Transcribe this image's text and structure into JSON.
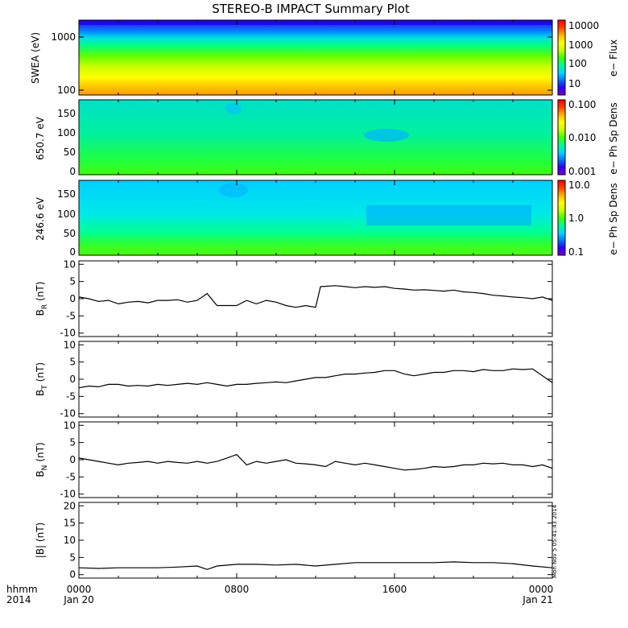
{
  "title": "STEREO-B IMPACT Summary Plot",
  "colors": {
    "line": "#000000",
    "spec_stops": [
      "#7a00c8",
      "#2a00ff",
      "#0078ff",
      "#00d8ff",
      "#00ff90",
      "#40ff00",
      "#c8ff00",
      "#ffff00",
      "#ffb400",
      "#ff4000",
      "#ff0000"
    ]
  },
  "x_axis": {
    "row1_label": "hhmm",
    "row2_label": "2014",
    "ticks": [
      "0000",
      "0800",
      "1600",
      "0000"
    ],
    "dates": [
      "Jan 20",
      "",
      "",
      "Jan 21"
    ],
    "range_hours": [
      0,
      24
    ]
  },
  "timestamp": "Mon Nov  5 05:41:43 2014",
  "chart_data": [
    {
      "type": "heatmap",
      "ylabel": "SWEA (eV)",
      "yticks": [
        "1000",
        "100"
      ],
      "ylim": [
        80,
        2500
      ],
      "log_y": true,
      "colorbar": {
        "label": "e− Flux",
        "ticks": [
          "10000",
          "1000",
          "100",
          "10"
        ],
        "range": [
          1,
          20000
        ],
        "log": true
      }
    },
    {
      "type": "heatmap",
      "ylabel": "650.7 eV",
      "yticks": [
        "0",
        "50",
        "100",
        "150"
      ],
      "ylim": [
        -5,
        180
      ],
      "colorbar": {
        "label": "e− Ph Sp Dens",
        "ticks": [
          "0.100",
          "0.010",
          "0.001"
        ],
        "range": [
          0.001,
          0.1
        ],
        "log": true
      }
    },
    {
      "type": "heatmap",
      "ylabel": "246.6 eV",
      "yticks": [
        "0",
        "50",
        "100",
        "150"
      ],
      "ylim": [
        -5,
        180
      ],
      "colorbar": {
        "label": "e− Ph Sp Dens",
        "ticks": [
          "10.0",
          "1.0",
          "0.1"
        ],
        "range": [
          0.1,
          10
        ],
        "log": true
      }
    },
    {
      "type": "line",
      "ylabel": "BR (nT)",
      "ylabel_main": "B",
      "ylabel_sub": "R",
      "ylabel_unit": "(nT)",
      "yticks": [
        "-10",
        "-5",
        "0",
        "5",
        "10"
      ],
      "ylim": [
        -11,
        11
      ],
      "x": [
        0,
        0.5,
        1,
        1.5,
        2,
        2.5,
        3,
        3.5,
        4,
        4.5,
        5,
        5.5,
        6,
        6.5,
        7,
        7.5,
        8,
        8.5,
        9,
        9.5,
        10,
        10.5,
        11,
        11.5,
        12,
        12.25,
        13,
        13.5,
        14,
        14.5,
        15,
        15.5,
        16,
        16.5,
        17,
        17.5,
        18,
        18.5,
        19,
        19.5,
        20,
        20.5,
        21,
        21.5,
        22,
        22.5,
        23,
        23.5,
        24
      ],
      "y": [
        0.5,
        0,
        -0.8,
        -0.5,
        -1.5,
        -1,
        -0.8,
        -1.2,
        -0.5,
        -0.5,
        -0.3,
        -1,
        -0.5,
        1.5,
        -2,
        -2,
        -2,
        -0.5,
        -1.5,
        -0.5,
        -1,
        -2,
        -2.5,
        -2,
        -2.5,
        3.5,
        3.8,
        3.5,
        3.2,
        3.5,
        3.3,
        3.5,
        3,
        2.8,
        2.5,
        2.6,
        2.4,
        2.2,
        2.5,
        2,
        1.8,
        1.5,
        1,
        0.8,
        0.5,
        0.3,
        0,
        0.5,
        -0.5
      ]
    },
    {
      "type": "line",
      "ylabel": "BT (nT)",
      "ylabel_main": "B",
      "ylabel_sub": "T",
      "ylabel_unit": "(nT)",
      "yticks": [
        "-10",
        "-5",
        "0",
        "5",
        "10"
      ],
      "ylim": [
        -11,
        11
      ],
      "x": [
        0,
        0.5,
        1,
        1.5,
        2,
        2.5,
        3,
        3.5,
        4,
        4.5,
        5,
        5.5,
        6,
        6.5,
        7,
        7.5,
        8,
        8.5,
        9,
        9.5,
        10,
        10.5,
        11,
        11.5,
        12,
        12.5,
        13,
        13.5,
        14,
        14.5,
        15,
        15.5,
        16,
        16.5,
        17,
        17.5,
        18,
        18.5,
        19,
        19.5,
        20,
        20.5,
        21,
        21.5,
        22,
        22.5,
        23,
        23.5,
        24
      ],
      "y": [
        -2.5,
        -2,
        -2.2,
        -1.5,
        -1.5,
        -2,
        -1.8,
        -2,
        -1.5,
        -1.8,
        -1.5,
        -1.2,
        -1.5,
        -1,
        -1.5,
        -2,
        -1.5,
        -1.5,
        -1.2,
        -1,
        -0.8,
        -1,
        -0.5,
        0,
        0.5,
        0.5,
        1,
        1.5,
        1.5,
        1.8,
        2,
        2.5,
        2.5,
        1.5,
        1,
        1.5,
        2,
        2,
        2.5,
        2.5,
        2.2,
        2.8,
        2.5,
        2.5,
        3,
        2.8,
        3,
        1,
        -1
      ]
    },
    {
      "type": "line",
      "ylabel": "BN (nT)",
      "ylabel_main": "B",
      "ylabel_sub": "N",
      "ylabel_unit": "(nT)",
      "yticks": [
        "-10",
        "-5",
        "0",
        "5",
        "10"
      ],
      "ylim": [
        -11,
        11
      ],
      "x": [
        0,
        0.5,
        1,
        1.5,
        2,
        2.5,
        3,
        3.5,
        4,
        4.5,
        5,
        5.5,
        6,
        6.5,
        7,
        7.5,
        8,
        8.5,
        9,
        9.5,
        10,
        10.5,
        11,
        11.5,
        12,
        12.5,
        13,
        13.5,
        14,
        14.5,
        15,
        15.5,
        16,
        16.5,
        17,
        17.5,
        18,
        18.5,
        19,
        19.5,
        20,
        20.5,
        21,
        21.5,
        22,
        22.5,
        23,
        23.5,
        24
      ],
      "y": [
        0.5,
        0,
        -0.5,
        -1,
        -1.5,
        -1,
        -0.8,
        -0.5,
        -1,
        -0.5,
        -0.8,
        -1,
        -0.5,
        -1,
        -0.5,
        0.5,
        1.5,
        -1.5,
        -0.5,
        -1,
        -0.5,
        0,
        -1,
        -1.2,
        -1.5,
        -2,
        -0.5,
        -1,
        -1.5,
        -1,
        -1.5,
        -2,
        -2.5,
        -3,
        -2.8,
        -2.5,
        -2,
        -2.2,
        -2,
        -1.5,
        -1.5,
        -1,
        -1.2,
        -1,
        -1.5,
        -1.5,
        -2,
        -1.5,
        -2.5
      ]
    },
    {
      "type": "line",
      "ylabel": "|B| (nT)",
      "yticks": [
        "0",
        "5",
        "10",
        "15",
        "20"
      ],
      "ylim": [
        -1,
        21
      ],
      "x": [
        0,
        1,
        2,
        3,
        4,
        5,
        6,
        6.5,
        7,
        8,
        9,
        10,
        11,
        12,
        13,
        14,
        15,
        16,
        17,
        18,
        19,
        20,
        21,
        22,
        23,
        24
      ],
      "y": [
        2,
        1.8,
        2,
        2,
        2,
        2.2,
        2.5,
        1.5,
        2.5,
        3,
        3,
        2.8,
        3,
        2.5,
        3,
        3.5,
        3.5,
        3.5,
        3.5,
        3.5,
        3.7,
        3.5,
        3.5,
        3.2,
        2.5,
        2
      ]
    }
  ]
}
